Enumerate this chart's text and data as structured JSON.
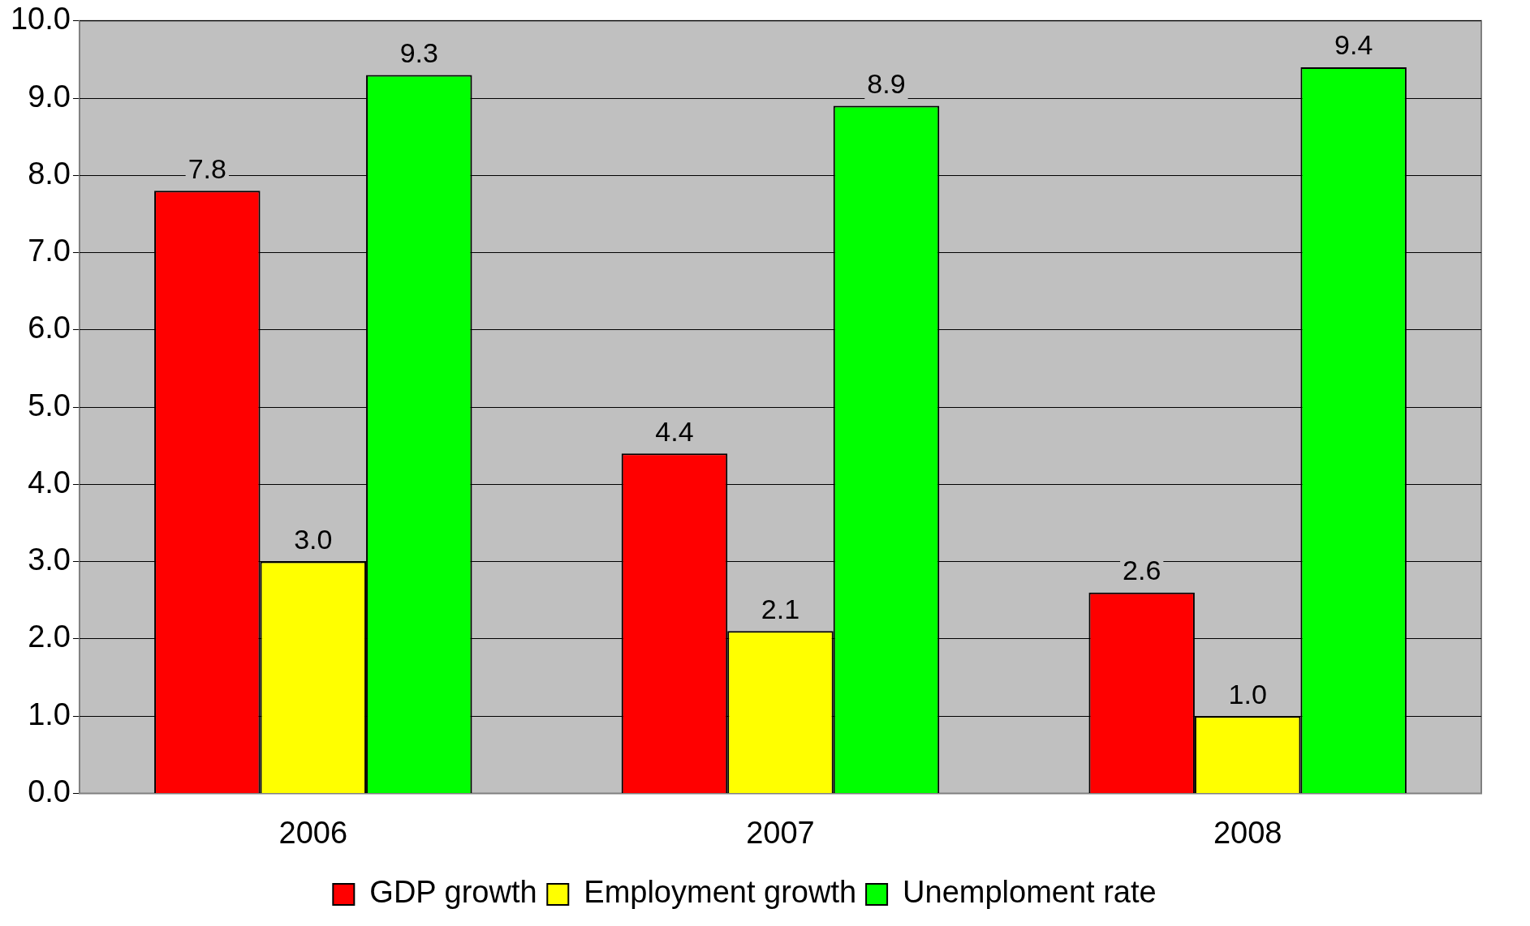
{
  "chart_data": {
    "type": "bar",
    "categories": [
      "2006",
      "2007",
      "2008"
    ],
    "series": [
      {
        "name": "GDP growth",
        "color": "#ff0000",
        "values": [
          7.8,
          4.4,
          2.6
        ],
        "value_labels": [
          "7.8",
          "4.4",
          "2.6"
        ]
      },
      {
        "name": "Employment growth",
        "color": "#ffff00",
        "values": [
          3.0,
          2.1,
          1.0
        ],
        "value_labels": [
          "3.0",
          "2.1",
          "1.0"
        ]
      },
      {
        "name": "Unemploment rate",
        "color": "#00ff00",
        "values": [
          9.3,
          8.9,
          9.4
        ],
        "value_labels": [
          "9.3",
          "8.9",
          "9.4"
        ]
      }
    ],
    "ylim": [
      0,
      10
    ],
    "yticks": [
      {
        "value": 0,
        "label": "0.0"
      },
      {
        "value": 1,
        "label": "1.0"
      },
      {
        "value": 2,
        "label": "2.0"
      },
      {
        "value": 3,
        "label": "3.0"
      },
      {
        "value": 4,
        "label": "4.0"
      },
      {
        "value": 5,
        "label": "5.0"
      },
      {
        "value": 6,
        "label": "6.0"
      },
      {
        "value": 7,
        "label": "7.0"
      },
      {
        "value": 8,
        "label": "8.0"
      },
      {
        "value": 9,
        "label": "9.0"
      },
      {
        "value": 10,
        "label": "10.0"
      }
    ],
    "grid": "y",
    "legend": "bottom"
  }
}
